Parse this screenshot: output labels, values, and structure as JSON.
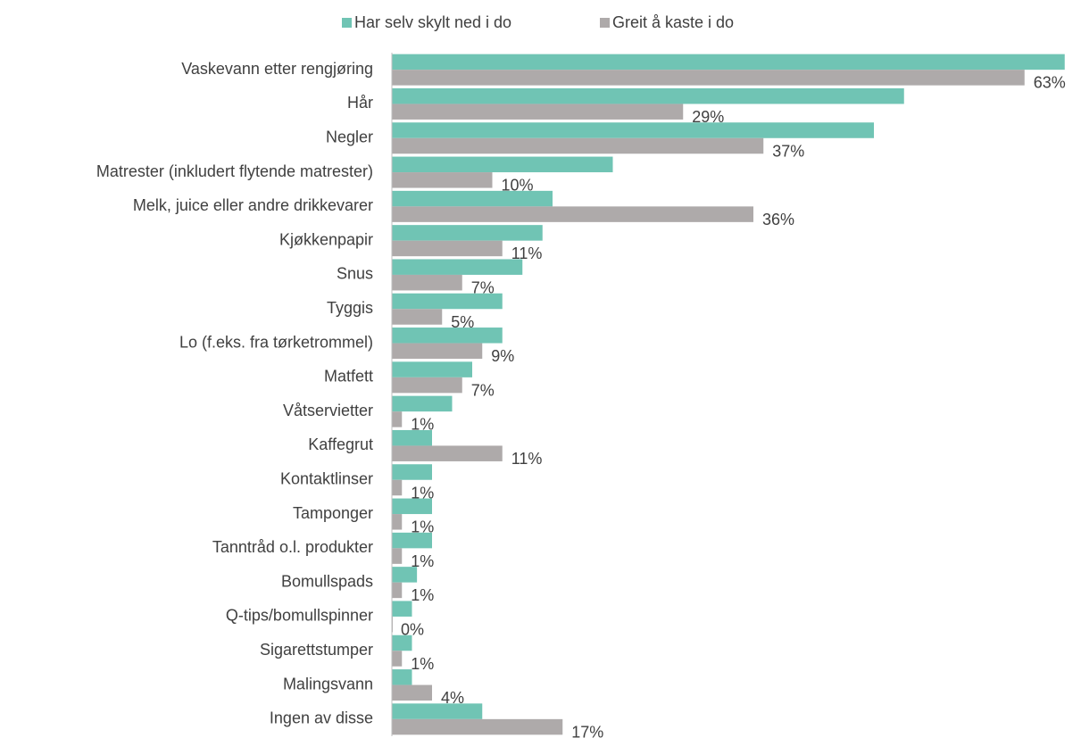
{
  "chart_data": {
    "type": "bar",
    "orientation": "horizontal",
    "categories": [
      "Vaskevann etter rengjøring",
      "Hår",
      "Negler",
      "Matrester (inkludert flytende matrester)",
      "Melk, juice eller andre drikkevarer",
      "Kjøkkenpapir",
      "Snus",
      "Tyggis",
      "Lo (f.eks. fra tørketrommel)",
      "Matfett",
      "Våtservietter",
      "Kaffegrut",
      "Kontaktlinser",
      "Tamponger",
      "Tanntråd o.l. produkter",
      "Bomullspads",
      "Q-tips/bomullspinner",
      "Sigarettstumper",
      "Malingsvann",
      "Ingen av disse"
    ],
    "series": [
      {
        "name": "Har selv skylt ned i do",
        "color": "#70c4b4",
        "values": [
          67,
          51,
          48,
          22,
          16,
          15,
          13,
          11,
          11,
          8,
          6,
          4,
          4,
          4,
          4,
          2.5,
          2,
          2,
          2,
          9
        ]
      },
      {
        "name": "Greit å kaste i do",
        "color": "#aeaaaa",
        "values": [
          63,
          29,
          37,
          10,
          36,
          11,
          7,
          5,
          9,
          7,
          1,
          11,
          1,
          1,
          1,
          1,
          0,
          1,
          4,
          17
        ],
        "value_labels": [
          "63%",
          "29%",
          "37%",
          "10%",
          "36%",
          "11%",
          "7%",
          "5%",
          "9%",
          "7%",
          "1%",
          "11%",
          "1%",
          "1%",
          "1%",
          "1%",
          "0%",
          "1%",
          "4%",
          "17%"
        ]
      }
    ],
    "xlim": [
      0,
      68
    ],
    "legend": "top"
  }
}
